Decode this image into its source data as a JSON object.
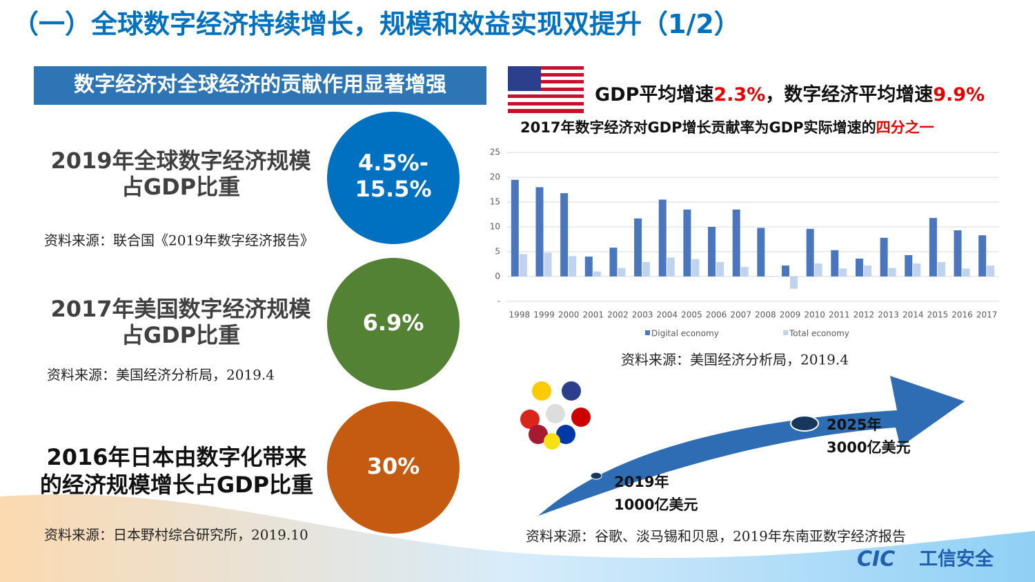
{
  "title": "（一）全球数字经济持续增长，规模和效益实现双提升（1/2）",
  "section_heading": "数字经济对全球经济的贡献作用显著增强",
  "stats": [
    {
      "label_lines": [
        "2019年全球数字经济规模",
        "占GDP比重"
      ],
      "value_lines": [
        "4.5%-",
        "15.5%"
      ],
      "source": "资料来源：联合国《2019年数字经济报告》"
    },
    {
      "label_lines": [
        "2017年美国数字经济规模",
        "占GDP比重"
      ],
      "value_lines": [
        "6.9%"
      ],
      "source": "资料来源：美国经济分析局，2019.4"
    },
    {
      "label_lines": [
        "2016年日本由数字化带来",
        "的经济规模增长占GDP比重"
      ],
      "value_lines": [
        "30%"
      ],
      "source": "资料来源：日本野村综合研究所，2019.10"
    }
  ],
  "us_headline": {
    "line1": [
      "GDP平均增速",
      "2.3%",
      "，数字经济平均增速",
      "9.9%"
    ],
    "line2": [
      "2017年数字经济对GDP增长贡献率为GDP实际增速的",
      "四分之一"
    ]
  },
  "chart_data": {
    "type": "bar",
    "categories": [
      "1998",
      "1999",
      "2000",
      "2001",
      "2002",
      "2003",
      "2004",
      "2005",
      "2006",
      "2007",
      "2008",
      "2009",
      "2010",
      "2011",
      "2012",
      "2013",
      "2014",
      "2015",
      "2016",
      "2017"
    ],
    "series": [
      {
        "name": "Digital economy",
        "color": "#4a76be",
        "values": [
          19.5,
          18,
          16.8,
          4,
          5.8,
          11.7,
          15.5,
          13.5,
          10,
          13.5,
          9.8,
          2.2,
          9.6,
          5.3,
          3.6,
          7.8,
          4.3,
          11.8,
          9.3,
          8.3
        ]
      },
      {
        "name": "Total economy",
        "color": "#bfd2ef",
        "values": [
          4.5,
          4.8,
          4.1,
          1.0,
          1.7,
          2.9,
          3.8,
          3.5,
          2.9,
          1.9,
          -0.1,
          -2.5,
          2.6,
          1.6,
          2.2,
          1.7,
          2.6,
          2.9,
          1.6,
          2.2
        ]
      }
    ],
    "ylim": [
      -6,
      26
    ],
    "yticks": [
      {
        "value": -5,
        "label": "-"
      },
      0,
      5,
      10,
      15,
      20,
      25
    ],
    "grid": true
  },
  "chart_source": "资料来源：美国经济分析局，2019.4",
  "asean": {
    "point_2025": [
      "2025年",
      "3000亿美元"
    ],
    "point_2019": [
      "2019年",
      "1000亿美元"
    ],
    "source": "资料来源：谷歌、淡马锡和贝恩，2019年东南亚数字经济报告"
  },
  "logo": {
    "mark": "CIC",
    "text": "工信安全"
  }
}
